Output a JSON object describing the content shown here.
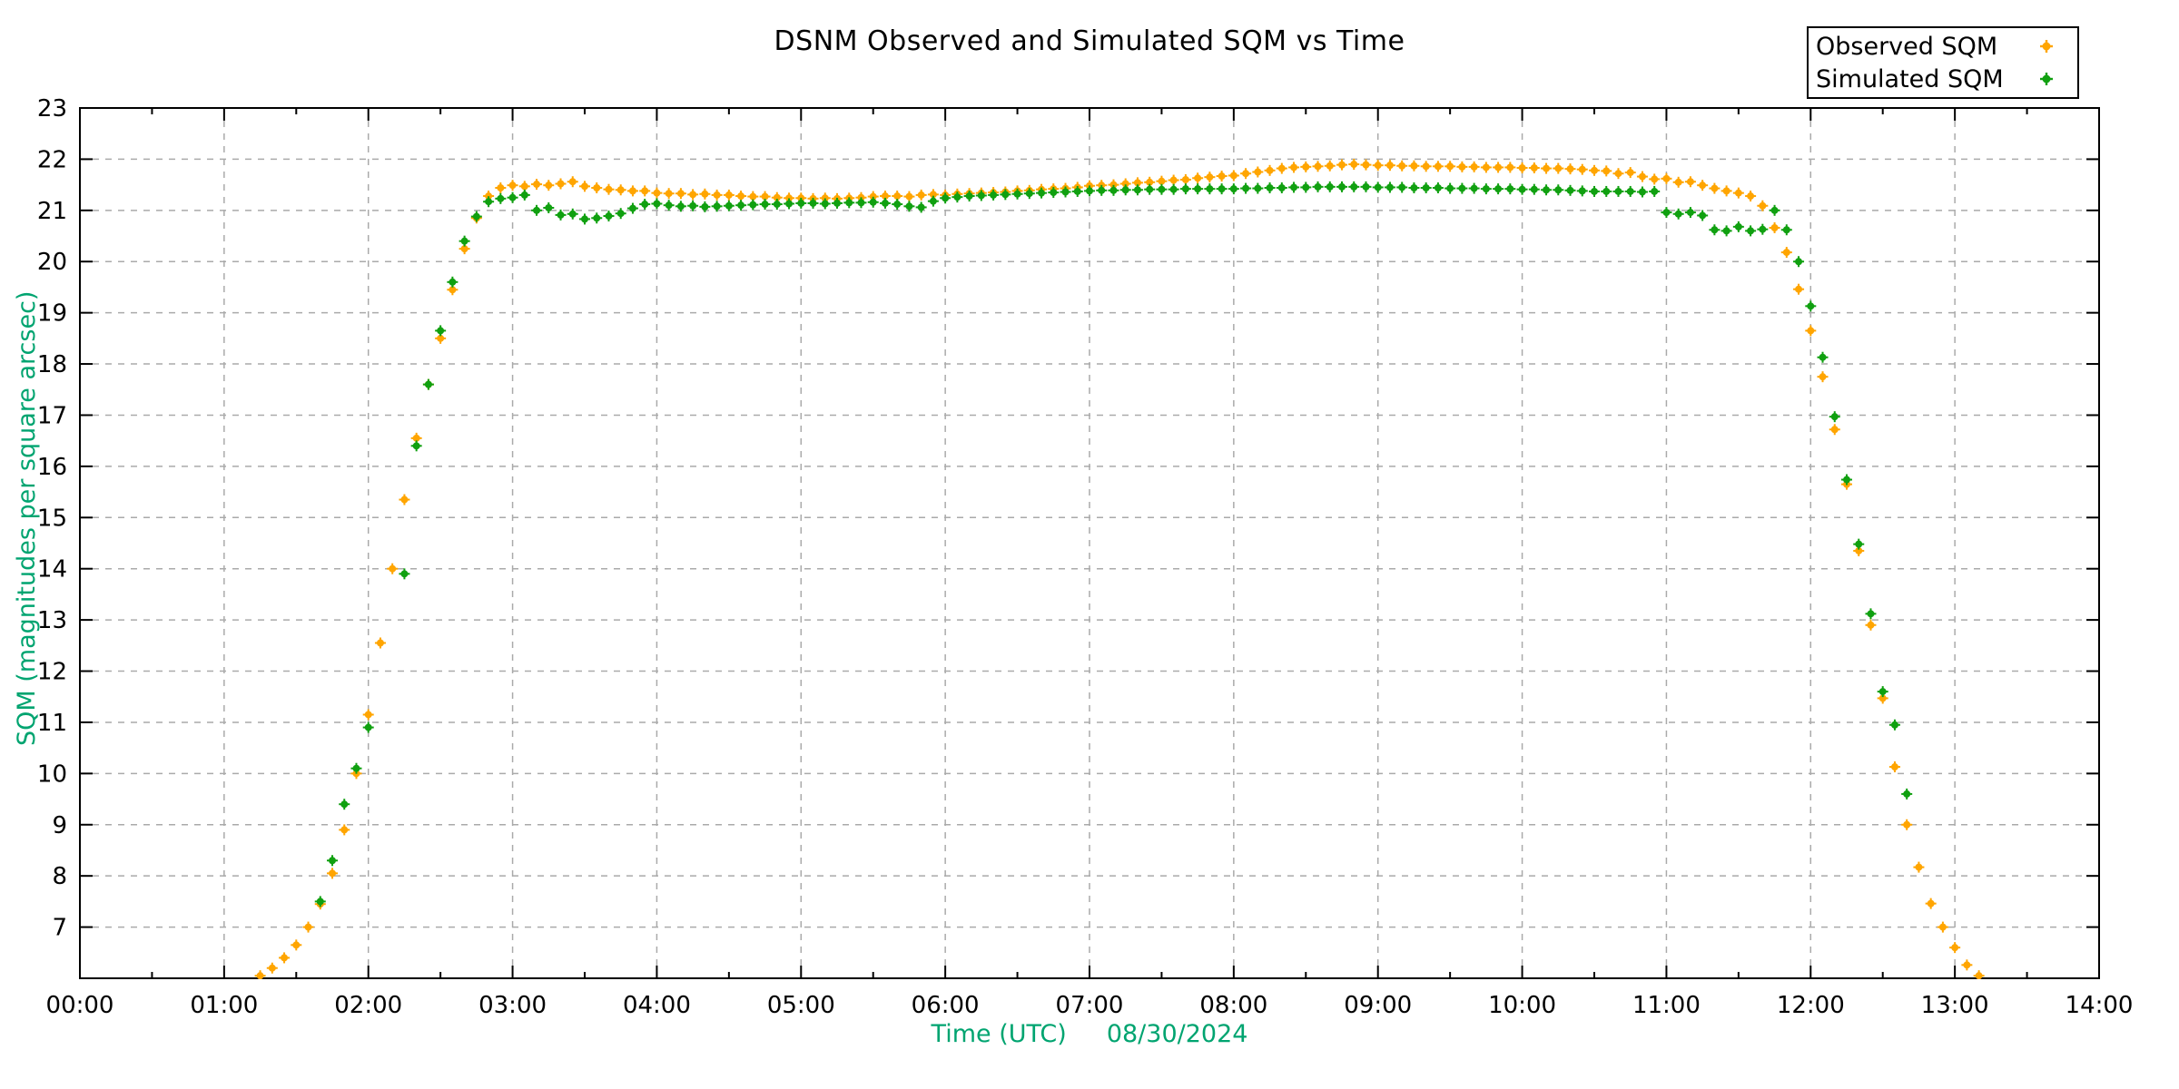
{
  "chart_data": {
    "type": "scatter",
    "title": "DSNM Observed and Simulated SQM vs Time",
    "xlabel": "Time (UTC)",
    "xlabel_date": "08/30/2024",
    "ylabel": "SQM (magnitudes per square arcsec)",
    "xlim_hours": [
      0,
      14
    ],
    "ylim": [
      6,
      23
    ],
    "grid": true,
    "legend_position": "top-right",
    "axis_label_color": "#00a470",
    "tick_label_color": "#000000",
    "grid_color": "#aaaaaa",
    "border_color": "#000000",
    "x_tick_labels": [
      "00:00",
      "01:00",
      "02:00",
      "03:00",
      "04:00",
      "05:00",
      "06:00",
      "07:00",
      "08:00",
      "09:00",
      "10:00",
      "11:00",
      "12:00",
      "13:00",
      "14:00"
    ],
    "x_minor_tick_interval_hours": 0.5,
    "y_ticks": [
      7,
      8,
      9,
      10,
      11,
      12,
      13,
      14,
      15,
      16,
      17,
      18,
      19,
      20,
      21,
      22,
      23
    ],
    "series": [
      {
        "name": "Observed SQM",
        "color": "#ffa500",
        "marker": "dot",
        "points": [
          [
            "01:15",
            6.05
          ],
          [
            "01:20",
            6.2
          ],
          [
            "01:25",
            6.4
          ],
          [
            "01:30",
            6.65
          ],
          [
            "01:35",
            7.0
          ],
          [
            "01:40",
            7.45
          ],
          [
            "01:45",
            8.05
          ],
          [
            "01:50",
            8.9
          ],
          [
            "01:55",
            10.0
          ],
          [
            "02:00",
            11.15
          ],
          [
            "02:05",
            12.55
          ],
          [
            "02:10",
            14.0
          ],
          [
            "02:15",
            15.35
          ],
          [
            "02:20",
            16.55
          ],
          [
            "02:25",
            17.6
          ],
          [
            "02:30",
            18.5
          ],
          [
            "02:35",
            19.45
          ],
          [
            "02:40",
            20.25
          ],
          [
            "02:45",
            20.85
          ],
          [
            "02:50",
            21.28
          ],
          [
            "02:55",
            21.44
          ],
          [
            "03:00",
            21.49
          ],
          [
            "03:05",
            21.47
          ],
          [
            "03:10",
            21.51
          ],
          [
            "03:15",
            21.49
          ],
          [
            "03:20",
            21.52
          ],
          [
            "03:25",
            21.56
          ],
          [
            "03:30",
            21.47
          ],
          [
            "03:35",
            21.44
          ],
          [
            "03:40",
            21.41
          ],
          [
            "03:45",
            21.4
          ],
          [
            "03:50",
            21.38
          ],
          [
            "03:55",
            21.38
          ],
          [
            "04:00",
            21.34
          ],
          [
            "04:05",
            21.33
          ],
          [
            "04:10",
            21.33
          ],
          [
            "04:15",
            21.31
          ],
          [
            "04:20",
            21.32
          ],
          [
            "04:25",
            21.3
          ],
          [
            "04:30",
            21.3
          ],
          [
            "04:35",
            21.28
          ],
          [
            "04:40",
            21.27
          ],
          [
            "04:45",
            21.27
          ],
          [
            "04:50",
            21.25
          ],
          [
            "04:55",
            21.24
          ],
          [
            "05:00",
            21.24
          ],
          [
            "05:05",
            21.23
          ],
          [
            "05:10",
            21.24
          ],
          [
            "05:15",
            21.23
          ],
          [
            "05:20",
            21.24
          ],
          [
            "05:25",
            21.25
          ],
          [
            "05:30",
            21.27
          ],
          [
            "05:35",
            21.28
          ],
          [
            "05:40",
            21.28
          ],
          [
            "05:45",
            21.27
          ],
          [
            "05:50",
            21.3
          ],
          [
            "05:55",
            21.31
          ],
          [
            "06:00",
            21.3
          ],
          [
            "06:05",
            21.32
          ],
          [
            "06:10",
            21.33
          ],
          [
            "06:15",
            21.34
          ],
          [
            "06:20",
            21.35
          ],
          [
            "06:25",
            21.36
          ],
          [
            "06:30",
            21.38
          ],
          [
            "06:35",
            21.39
          ],
          [
            "06:40",
            21.41
          ],
          [
            "06:45",
            21.42
          ],
          [
            "06:50",
            21.43
          ],
          [
            "06:55",
            21.45
          ],
          [
            "07:00",
            21.48
          ],
          [
            "07:05",
            21.49
          ],
          [
            "07:10",
            21.5
          ],
          [
            "07:15",
            21.52
          ],
          [
            "07:20",
            21.54
          ],
          [
            "07:25",
            21.55
          ],
          [
            "07:30",
            21.57
          ],
          [
            "07:35",
            21.59
          ],
          [
            "07:40",
            21.6
          ],
          [
            "07:45",
            21.63
          ],
          [
            "07:50",
            21.65
          ],
          [
            "07:55",
            21.67
          ],
          [
            "08:00",
            21.68
          ],
          [
            "08:05",
            21.72
          ],
          [
            "08:10",
            21.75
          ],
          [
            "08:15",
            21.78
          ],
          [
            "08:20",
            21.82
          ],
          [
            "08:25",
            21.84
          ],
          [
            "08:30",
            21.85
          ],
          [
            "08:35",
            21.86
          ],
          [
            "08:40",
            21.87
          ],
          [
            "08:45",
            21.89
          ],
          [
            "08:50",
            21.9
          ],
          [
            "08:55",
            21.89
          ],
          [
            "09:00",
            21.88
          ],
          [
            "09:05",
            21.88
          ],
          [
            "09:10",
            21.87
          ],
          [
            "09:15",
            21.87
          ],
          [
            "09:20",
            21.86
          ],
          [
            "09:25",
            21.86
          ],
          [
            "09:30",
            21.86
          ],
          [
            "09:35",
            21.85
          ],
          [
            "09:40",
            21.85
          ],
          [
            "09:45",
            21.84
          ],
          [
            "09:50",
            21.84
          ],
          [
            "09:55",
            21.84
          ],
          [
            "10:00",
            21.83
          ],
          [
            "10:05",
            21.83
          ],
          [
            "10:10",
            21.82
          ],
          [
            "10:15",
            21.82
          ],
          [
            "10:20",
            21.81
          ],
          [
            "10:25",
            21.8
          ],
          [
            "10:30",
            21.78
          ],
          [
            "10:35",
            21.77
          ],
          [
            "10:40",
            21.72
          ],
          [
            "10:45",
            21.74
          ],
          [
            "10:50",
            21.66
          ],
          [
            "10:55",
            21.61
          ],
          [
            "11:00",
            21.62
          ],
          [
            "11:05",
            21.55
          ],
          [
            "11:10",
            21.56
          ],
          [
            "11:15",
            21.49
          ],
          [
            "11:20",
            21.43
          ],
          [
            "11:25",
            21.38
          ],
          [
            "11:30",
            21.34
          ],
          [
            "11:35",
            21.28
          ],
          [
            "11:40",
            21.09
          ],
          [
            "11:45",
            20.66
          ],
          [
            "11:50",
            20.18
          ],
          [
            "11:55",
            19.46
          ],
          [
            "12:00",
            18.65
          ],
          [
            "12:05",
            17.75
          ],
          [
            "12:10",
            16.72
          ],
          [
            "12:15",
            15.65
          ],
          [
            "12:20",
            14.35
          ],
          [
            "12:25",
            12.9
          ],
          [
            "12:30",
            11.47
          ],
          [
            "12:35",
            10.13
          ],
          [
            "12:40",
            9.0
          ],
          [
            "12:45",
            8.17
          ],
          [
            "12:50",
            7.46
          ],
          [
            "12:55",
            7.0
          ],
          [
            "13:00",
            6.6
          ],
          [
            "13:05",
            6.26
          ],
          [
            "13:10",
            6.05
          ]
        ]
      },
      {
        "name": "Simulated SQM",
        "color": "#10a010",
        "marker": "dot",
        "points": [
          [
            "01:40",
            7.5
          ],
          [
            "01:45",
            8.3
          ],
          [
            "01:50",
            9.4
          ],
          [
            "01:55",
            10.1
          ],
          [
            "02:00",
            10.9
          ],
          [
            "02:15",
            13.9
          ],
          [
            "02:20",
            16.4
          ],
          [
            "02:25",
            17.6
          ],
          [
            "02:30",
            18.65
          ],
          [
            "02:35",
            19.6
          ],
          [
            "02:40",
            20.4
          ],
          [
            "02:45",
            20.88
          ],
          [
            "02:50",
            21.17
          ],
          [
            "02:55",
            21.23
          ],
          [
            "03:00",
            21.25
          ],
          [
            "03:05",
            21.3
          ],
          [
            "03:10",
            21.0
          ],
          [
            "03:15",
            21.05
          ],
          [
            "03:20",
            20.91
          ],
          [
            "03:25",
            20.93
          ],
          [
            "03:30",
            20.83
          ],
          [
            "03:35",
            20.85
          ],
          [
            "03:40",
            20.89
          ],
          [
            "03:45",
            20.94
          ],
          [
            "03:50",
            21.04
          ],
          [
            "03:55",
            21.12
          ],
          [
            "04:00",
            21.13
          ],
          [
            "04:05",
            21.1
          ],
          [
            "04:10",
            21.08
          ],
          [
            "04:15",
            21.09
          ],
          [
            "04:20",
            21.07
          ],
          [
            "04:25",
            21.08
          ],
          [
            "04:30",
            21.09
          ],
          [
            "04:35",
            21.1
          ],
          [
            "04:40",
            21.11
          ],
          [
            "04:45",
            21.12
          ],
          [
            "04:50",
            21.12
          ],
          [
            "04:55",
            21.13
          ],
          [
            "05:00",
            21.14
          ],
          [
            "05:05",
            21.14
          ],
          [
            "05:10",
            21.13
          ],
          [
            "05:15",
            21.14
          ],
          [
            "05:20",
            21.15
          ],
          [
            "05:25",
            21.15
          ],
          [
            "05:30",
            21.16
          ],
          [
            "05:35",
            21.14
          ],
          [
            "05:40",
            21.12
          ],
          [
            "05:45",
            21.08
          ],
          [
            "05:50",
            21.06
          ],
          [
            "05:55",
            21.18
          ],
          [
            "06:00",
            21.24
          ],
          [
            "06:05",
            21.26
          ],
          [
            "06:10",
            21.28
          ],
          [
            "06:15",
            21.29
          ],
          [
            "06:20",
            21.3
          ],
          [
            "06:25",
            21.31
          ],
          [
            "06:30",
            21.32
          ],
          [
            "06:35",
            21.33
          ],
          [
            "06:40",
            21.34
          ],
          [
            "06:45",
            21.35
          ],
          [
            "06:50",
            21.36
          ],
          [
            "06:55",
            21.37
          ],
          [
            "07:00",
            21.38
          ],
          [
            "07:05",
            21.39
          ],
          [
            "07:10",
            21.39
          ],
          [
            "07:15",
            21.4
          ],
          [
            "07:20",
            21.4
          ],
          [
            "07:25",
            21.41
          ],
          [
            "07:30",
            21.41
          ],
          [
            "07:35",
            21.41
          ],
          [
            "07:40",
            21.42
          ],
          [
            "07:45",
            21.42
          ],
          [
            "07:50",
            21.42
          ],
          [
            "07:55",
            21.42
          ],
          [
            "08:00",
            21.42
          ],
          [
            "08:05",
            21.43
          ],
          [
            "08:10",
            21.43
          ],
          [
            "08:15",
            21.44
          ],
          [
            "08:20",
            21.44
          ],
          [
            "08:25",
            21.45
          ],
          [
            "08:30",
            21.45
          ],
          [
            "08:35",
            21.46
          ],
          [
            "08:40",
            21.46
          ],
          [
            "08:45",
            21.46
          ],
          [
            "08:50",
            21.46
          ],
          [
            "08:55",
            21.46
          ],
          [
            "09:00",
            21.45
          ],
          [
            "09:05",
            21.45
          ],
          [
            "09:10",
            21.45
          ],
          [
            "09:15",
            21.44
          ],
          [
            "09:20",
            21.44
          ],
          [
            "09:25",
            21.44
          ],
          [
            "09:30",
            21.43
          ],
          [
            "09:35",
            21.43
          ],
          [
            "09:40",
            21.43
          ],
          [
            "09:45",
            21.42
          ],
          [
            "09:50",
            21.42
          ],
          [
            "09:55",
            21.42
          ],
          [
            "10:00",
            21.41
          ],
          [
            "10:05",
            21.41
          ],
          [
            "10:10",
            21.4
          ],
          [
            "10:15",
            21.4
          ],
          [
            "10:20",
            21.39
          ],
          [
            "10:25",
            21.38
          ],
          [
            "10:30",
            21.37
          ],
          [
            "10:35",
            21.37
          ],
          [
            "10:40",
            21.37
          ],
          [
            "10:45",
            21.37
          ],
          [
            "10:50",
            21.36
          ],
          [
            "10:55",
            21.37
          ],
          [
            "11:00",
            20.96
          ],
          [
            "11:05",
            20.93
          ],
          [
            "11:10",
            20.96
          ],
          [
            "11:15",
            20.9
          ],
          [
            "11:20",
            20.62
          ],
          [
            "11:25",
            20.6
          ],
          [
            "11:30",
            20.68
          ],
          [
            "11:35",
            20.6
          ],
          [
            "11:40",
            20.63
          ],
          [
            "11:45",
            21.0
          ],
          [
            "11:50",
            20.62
          ],
          [
            "11:55",
            20.0
          ],
          [
            "12:00",
            19.13
          ],
          [
            "12:05",
            18.13
          ],
          [
            "12:10",
            16.97
          ],
          [
            "12:15",
            15.74
          ],
          [
            "12:20",
            14.48
          ],
          [
            "12:25",
            13.12
          ],
          [
            "12:30",
            11.6
          ],
          [
            "12:35",
            10.95
          ],
          [
            "12:40",
            9.6
          ]
        ]
      }
    ]
  }
}
